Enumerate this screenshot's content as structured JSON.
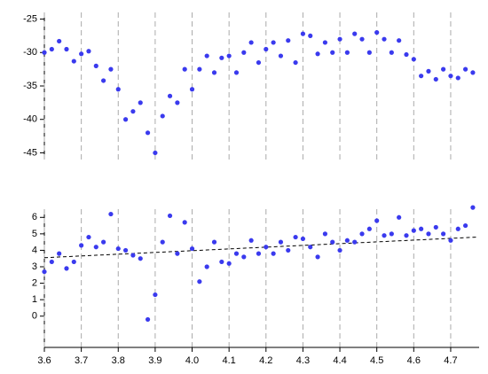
{
  "chart_data": [
    {
      "type": "scatter",
      "color": "#3a3aee",
      "x": [
        3.6,
        3.62,
        3.64,
        3.66,
        3.68,
        3.7,
        3.72,
        3.74,
        3.76,
        3.78,
        3.8,
        3.82,
        3.84,
        3.86,
        3.88,
        3.9,
        3.92,
        3.94,
        3.96,
        3.98,
        4.0,
        4.02,
        4.04,
        4.06,
        4.08,
        4.1,
        4.12,
        4.14,
        4.16,
        4.18,
        4.2,
        4.22,
        4.24,
        4.26,
        4.28,
        4.3,
        4.32,
        4.34,
        4.36,
        4.38,
        4.4,
        4.42,
        4.44,
        4.46,
        4.48,
        4.5,
        4.52,
        4.54,
        4.56,
        4.58,
        4.6,
        4.62,
        4.64,
        4.66,
        4.68,
        4.7,
        4.72,
        4.74,
        4.76
      ],
      "values": [
        -30,
        -29.5,
        -28.3,
        -29.5,
        -31.3,
        -30.2,
        -29.8,
        -32,
        -34.2,
        -32.5,
        -35.5,
        -40,
        -38.8,
        -37.5,
        -42,
        -45,
        -39.5,
        -36.5,
        -37.5,
        -32.5,
        -35.5,
        -32.5,
        -30.5,
        -33,
        -30.8,
        -30.5,
        -33,
        -30,
        -28.5,
        -31.5,
        -29.5,
        -28.5,
        -30.5,
        -28.2,
        -31.5,
        -27.2,
        -27.5,
        -30.2,
        -28.5,
        -30,
        -28,
        -30,
        -27.2,
        -28,
        -30,
        -27,
        -28,
        -30,
        -28.2,
        -30.3,
        -31,
        -33.5,
        -32.8,
        -34,
        -32.5,
        -33.5,
        -33.8,
        -32.5,
        -33
      ],
      "xlim": [
        3.6,
        4.777
      ],
      "xticks": [
        3.6,
        3.7,
        3.8,
        3.9,
        4.0,
        4.1,
        4.2,
        4.3,
        4.4,
        4.5,
        4.6,
        4.7
      ],
      "ylim": [
        -46,
        -24
      ],
      "yticks": [
        -25,
        -30,
        -35,
        -40,
        -45
      ],
      "grid": true
    },
    {
      "type": "scatter",
      "color": "#3a3aee",
      "x": [
        3.6,
        3.62,
        3.64,
        3.66,
        3.68,
        3.7,
        3.72,
        3.74,
        3.76,
        3.78,
        3.8,
        3.82,
        3.84,
        3.86,
        3.88,
        3.9,
        3.92,
        3.94,
        3.96,
        3.98,
        4.0,
        4.02,
        4.04,
        4.06,
        4.08,
        4.1,
        4.12,
        4.14,
        4.16,
        4.18,
        4.2,
        4.22,
        4.24,
        4.26,
        4.28,
        4.3,
        4.32,
        4.34,
        4.36,
        4.38,
        4.4,
        4.42,
        4.44,
        4.46,
        4.48,
        4.5,
        4.52,
        4.54,
        4.56,
        4.58,
        4.6,
        4.62,
        4.64,
        4.66,
        4.68,
        4.7,
        4.72,
        4.74,
        4.76
      ],
      "values": [
        2.7,
        3.3,
        3.8,
        2.9,
        3.3,
        4.3,
        4.8,
        4.2,
        4.5,
        6.2,
        4.1,
        4.0,
        3.7,
        3.5,
        -0.2,
        1.3,
        4.5,
        6.1,
        3.8,
        5.7,
        4.1,
        2.1,
        3.0,
        4.5,
        3.3,
        3.2,
        3.8,
        3.6,
        4.6,
        3.8,
        4.2,
        3.8,
        4.5,
        4.0,
        4.8,
        4.7,
        4.2,
        3.6,
        5.0,
        4.5,
        4.0,
        4.6,
        4.5,
        5.0,
        5.3,
        5.8,
        4.9,
        5.0,
        6.0,
        4.9,
        5.2,
        5.3,
        5.0,
        5.4,
        5.0,
        4.6,
        5.3,
        5.5,
        6.6
      ],
      "trend": {
        "x": [
          3.6,
          4.77
        ],
        "values": [
          3.55,
          4.8
        ],
        "color": "#000000"
      },
      "xlim": [
        3.6,
        4.777
      ],
      "xticks": [
        3.6,
        3.7,
        3.8,
        3.9,
        {
          "value": 4,
          "label": "4.0"
        },
        4.1,
        4.2,
        4.3,
        4.4,
        4.5,
        4.6,
        4.7
      ],
      "ylim": [
        -1.9,
        6.5
      ],
      "yticks": [
        0,
        1,
        2,
        3,
        4,
        5,
        6
      ],
      "grid": true
    }
  ]
}
